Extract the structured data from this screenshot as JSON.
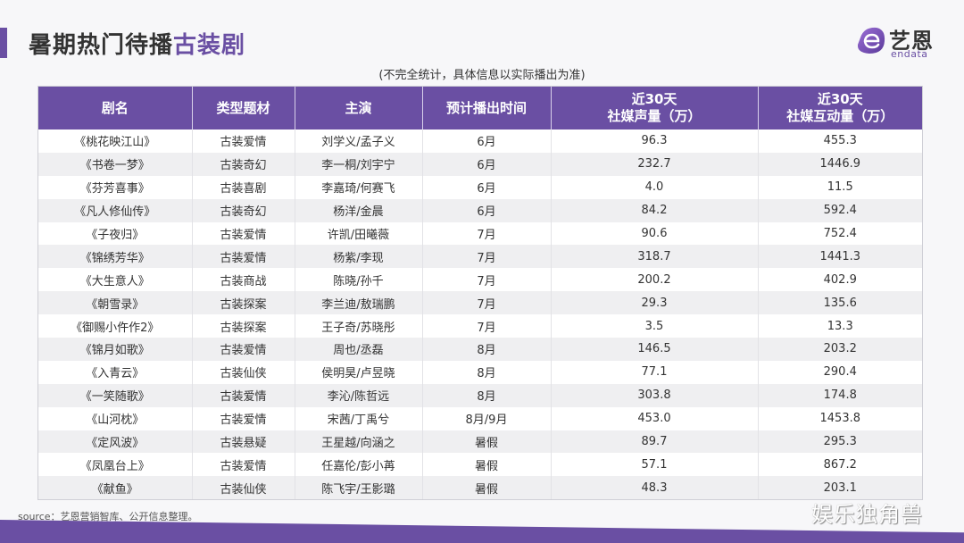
{
  "header": {
    "title_main": "暑期热门待播",
    "title_accent": "古装剧",
    "subtitle": "(不完全统计，具体信息以实际播出为准)"
  },
  "logo": {
    "cn": "艺恩",
    "en": "endata"
  },
  "colors": {
    "accent": "#6a4fa3",
    "header_text": "#ffffff",
    "row_alt": "#efeff1"
  },
  "table": {
    "headers": [
      {
        "line1": "剧名",
        "line2": ""
      },
      {
        "line1": "类型题材",
        "line2": ""
      },
      {
        "line1": "主演",
        "line2": ""
      },
      {
        "line1": "预计播出时间",
        "line2": ""
      },
      {
        "line1": "近30天",
        "line2": "社媒声量（万）"
      },
      {
        "line1": "近30天",
        "line2": "社媒互动量（万）"
      }
    ],
    "rows": [
      {
        "name": "《桃花映江山》",
        "genre": "古装爱情",
        "cast": "刘学义/孟子义",
        "airtime": "6月",
        "volume": "96.3",
        "interaction": "455.3"
      },
      {
        "name": "《书卷一梦》",
        "genre": "古装奇幻",
        "cast": "李一桐/刘宇宁",
        "airtime": "6月",
        "volume": "232.7",
        "interaction": "1446.9"
      },
      {
        "name": "《芬芳喜事》",
        "genre": "古装喜剧",
        "cast": "李嘉琦/何赛飞",
        "airtime": "6月",
        "volume": "4.0",
        "interaction": "11.5"
      },
      {
        "name": "《凡人修仙传》",
        "genre": "古装奇幻",
        "cast": "杨洋/金晨",
        "airtime": "6月",
        "volume": "84.2",
        "interaction": "592.4"
      },
      {
        "name": "《子夜归》",
        "genre": "古装爱情",
        "cast": "许凯/田曦薇",
        "airtime": "7月",
        "volume": "90.6",
        "interaction": "752.4"
      },
      {
        "name": "《锦绣芳华》",
        "genre": "古装爱情",
        "cast": "杨紫/李现",
        "airtime": "7月",
        "volume": "318.7",
        "interaction": "1441.3"
      },
      {
        "name": "《大生意人》",
        "genre": "古装商战",
        "cast": "陈晓/孙千",
        "airtime": "7月",
        "volume": "200.2",
        "interaction": "402.9"
      },
      {
        "name": "《朝雪录》",
        "genre": "古装探案",
        "cast": "李兰迪/敖瑞鹏",
        "airtime": "7月",
        "volume": "29.3",
        "interaction": "135.6"
      },
      {
        "name": "《御赐小仵作2》",
        "genre": "古装探案",
        "cast": "王子奇/苏晓彤",
        "airtime": "7月",
        "volume": "3.5",
        "interaction": "13.3"
      },
      {
        "name": "《锦月如歌》",
        "genre": "古装爱情",
        "cast": "周也/丞磊",
        "airtime": "8月",
        "volume": "146.5",
        "interaction": "203.2"
      },
      {
        "name": "《入青云》",
        "genre": "古装仙侠",
        "cast": "侯明昊/卢昱晓",
        "airtime": "8月",
        "volume": "77.1",
        "interaction": "290.4"
      },
      {
        "name": "《一笑随歌》",
        "genre": "古装爱情",
        "cast": "李沁/陈哲远",
        "airtime": "8月",
        "volume": "303.8",
        "interaction": "174.8"
      },
      {
        "name": "《山河枕》",
        "genre": "古装爱情",
        "cast": "宋茜/丁禹兮",
        "airtime": "8月/9月",
        "volume": "453.0",
        "interaction": "1453.8"
      },
      {
        "name": "《定风波》",
        "genre": "古装悬疑",
        "cast": "王星越/向涵之",
        "airtime": "暑假",
        "volume": "89.7",
        "interaction": "295.3"
      },
      {
        "name": "《凤凰台上》",
        "genre": "古装爱情",
        "cast": "任嘉伦/彭小苒",
        "airtime": "暑假",
        "volume": "57.1",
        "interaction": "867.2"
      },
      {
        "name": "《献鱼》",
        "genre": "古装仙侠",
        "cast": "陈飞宇/王影璐",
        "airtime": "暑假",
        "volume": "48.3",
        "interaction": "203.1"
      }
    ]
  },
  "footer": {
    "source": "source：艺恩营销智库、公开信息整理。",
    "watermark": "娱乐独角兽"
  }
}
